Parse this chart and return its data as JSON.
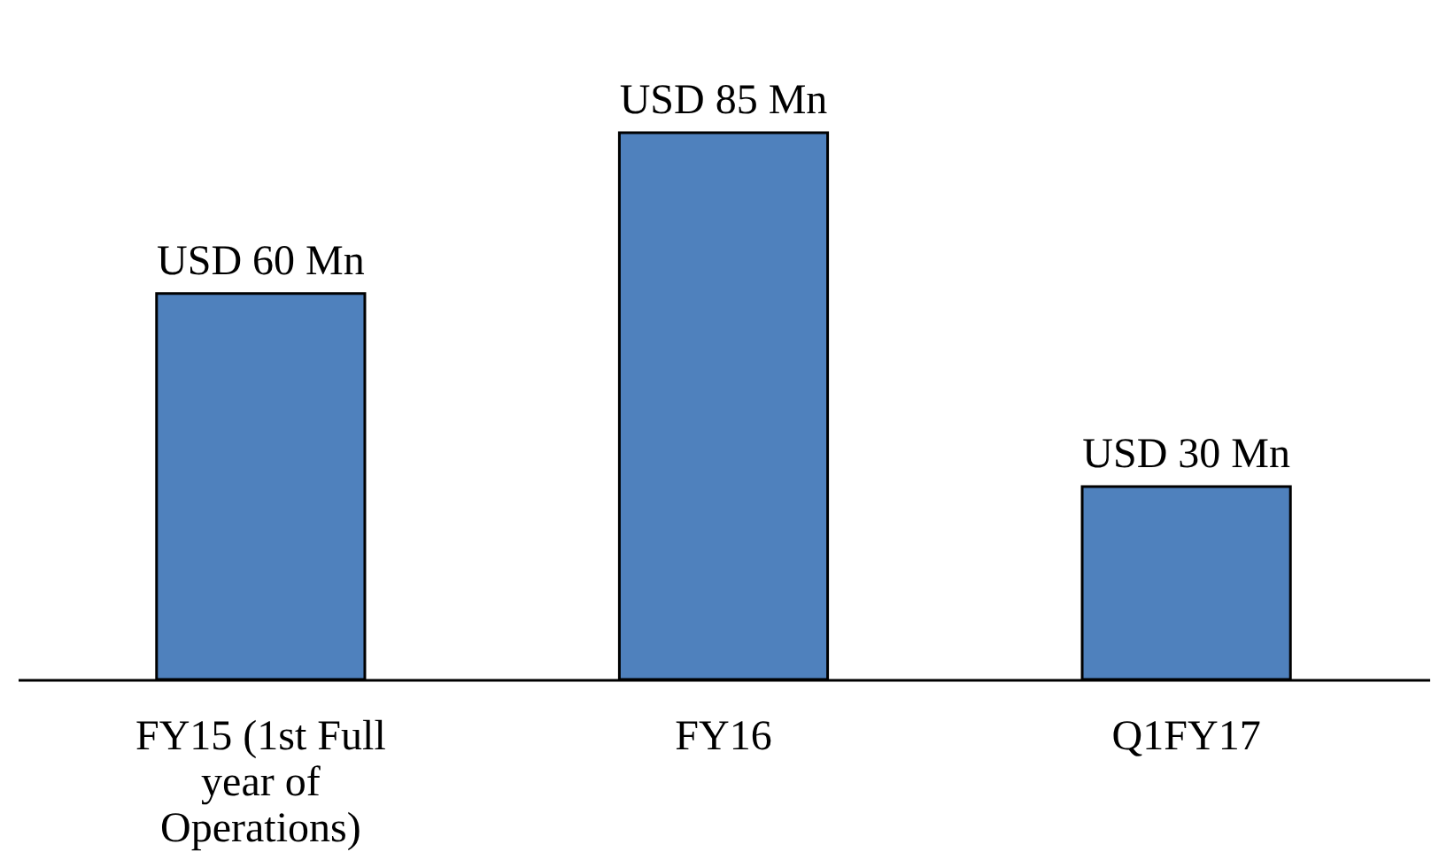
{
  "chart_data": {
    "type": "bar",
    "categories": [
      "FY15 (1st Full year of Operations)",
      "FY16",
      "Q1FY17"
    ],
    "values": [
      60,
      85,
      30
    ],
    "color": "#4f81bd",
    "value_labels": [
      "USD 60 Mn",
      "USD 85 Mn",
      "USD 30 Mn"
    ],
    "grid": false
  }
}
